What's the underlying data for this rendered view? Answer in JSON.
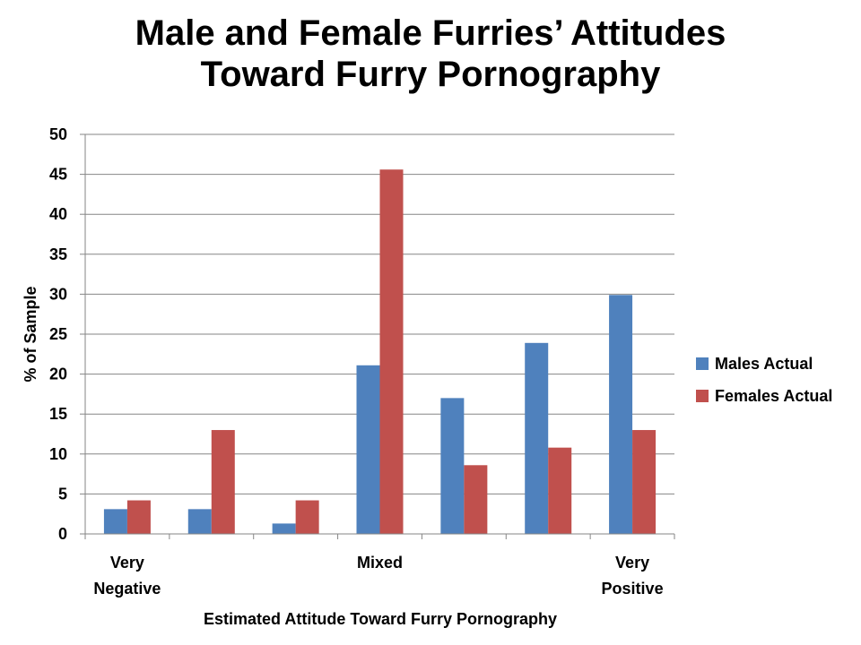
{
  "chart_data": {
    "type": "bar",
    "title_lines": [
      "Male and Female Furries’ Attitudes",
      "Toward Furry Pornography"
    ],
    "xlabel": "Estimated Attitude Toward Furry Pornography",
    "ylabel": "% of Sample",
    "ylim": [
      0,
      50
    ],
    "ytick_step": 5,
    "grid": true,
    "legend_position": "right",
    "categories": [
      "Very Negative",
      "",
      "",
      "Mixed",
      "",
      "",
      "Very Positive"
    ],
    "category_label_lines": [
      [
        "Very",
        "Negative"
      ],
      [],
      [],
      [
        "Mixed"
      ],
      [],
      [],
      [
        "Very",
        "Positive"
      ]
    ],
    "series": [
      {
        "name": "Males Actual",
        "color": "#4F81BD",
        "values": [
          3.1,
          3.1,
          1.3,
          21.1,
          17.0,
          23.9,
          29.9
        ]
      },
      {
        "name": "Females Actual",
        "color": "#C0504D",
        "values": [
          4.2,
          13.0,
          4.2,
          45.6,
          8.6,
          10.8,
          13.0
        ]
      }
    ]
  }
}
